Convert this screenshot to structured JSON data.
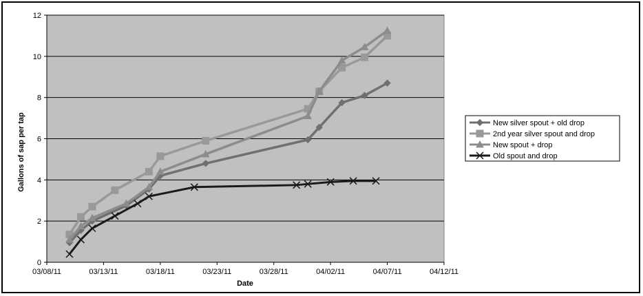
{
  "chart_data": {
    "type": "line",
    "title": "",
    "xlabel": "Date",
    "ylabel": "Gallons of sap per tap",
    "ylim": [
      0,
      12
    ],
    "xlim": [
      "03/08/11",
      "04/12/11"
    ],
    "yticks": [
      "0",
      "2",
      "4",
      "6",
      "8",
      "10",
      "12"
    ],
    "xticks": [
      "03/08/11",
      "03/13/11",
      "03/18/11",
      "03/23/11",
      "03/28/11",
      "04/02/11",
      "04/07/11",
      "04/12/11"
    ],
    "grid": "horizontal",
    "legend_position": "right",
    "plot_background": "#c0c0c0",
    "series": [
      {
        "name": "New silver spout + old drop",
        "color": "#707070",
        "marker": "diamond",
        "x": [
          "03/10/11",
          "03/11/11",
          "03/12/11",
          "03/15/11",
          "03/17/11",
          "03/18/11",
          "03/22/11",
          "03/31/11",
          "04/01/11",
          "04/03/11",
          "04/05/11",
          "04/07/11"
        ],
        "y": [
          0.95,
          1.55,
          2.0,
          2.75,
          3.55,
          4.2,
          4.8,
          5.95,
          6.55,
          7.75,
          8.1,
          8.7
        ]
      },
      {
        "name": "2nd year silver spout and drop",
        "color": "#999999",
        "marker": "square",
        "x": [
          "03/10/11",
          "03/11/11",
          "03/12/11",
          "03/14/11",
          "03/17/11",
          "03/18/11",
          "03/22/11",
          "03/31/11",
          "04/01/11",
          "04/03/11",
          "04/05/11",
          "04/07/11"
        ],
        "y": [
          1.35,
          2.2,
          2.7,
          3.5,
          4.4,
          5.15,
          5.9,
          7.45,
          8.3,
          9.45,
          9.95,
          11.0
        ]
      },
      {
        "name": "New spout + drop",
        "color": "#8c8c8c",
        "marker": "triangle",
        "x": [
          "03/10/11",
          "03/11/11",
          "03/12/11",
          "03/15/11",
          "03/17/11",
          "03/18/11",
          "03/22/11",
          "03/31/11",
          "04/01/11",
          "04/03/11",
          "04/05/11",
          "04/07/11"
        ],
        "y": [
          1.1,
          1.75,
          2.15,
          2.85,
          3.65,
          4.4,
          5.25,
          7.1,
          8.3,
          9.8,
          10.45,
          11.25
        ]
      },
      {
        "name": "Old spout and drop",
        "color": "#1a1a1a",
        "marker": "x",
        "x": [
          "03/10/11",
          "03/11/11",
          "03/12/11",
          "03/14/11",
          "03/16/11",
          "03/17/11",
          "03/21/11",
          "03/30/11",
          "03/31/11",
          "04/02/11",
          "04/04/11",
          "04/06/11"
        ],
        "y": [
          0.4,
          1.1,
          1.65,
          2.25,
          2.85,
          3.2,
          3.65,
          3.75,
          3.8,
          3.9,
          3.95,
          3.95
        ]
      }
    ]
  }
}
